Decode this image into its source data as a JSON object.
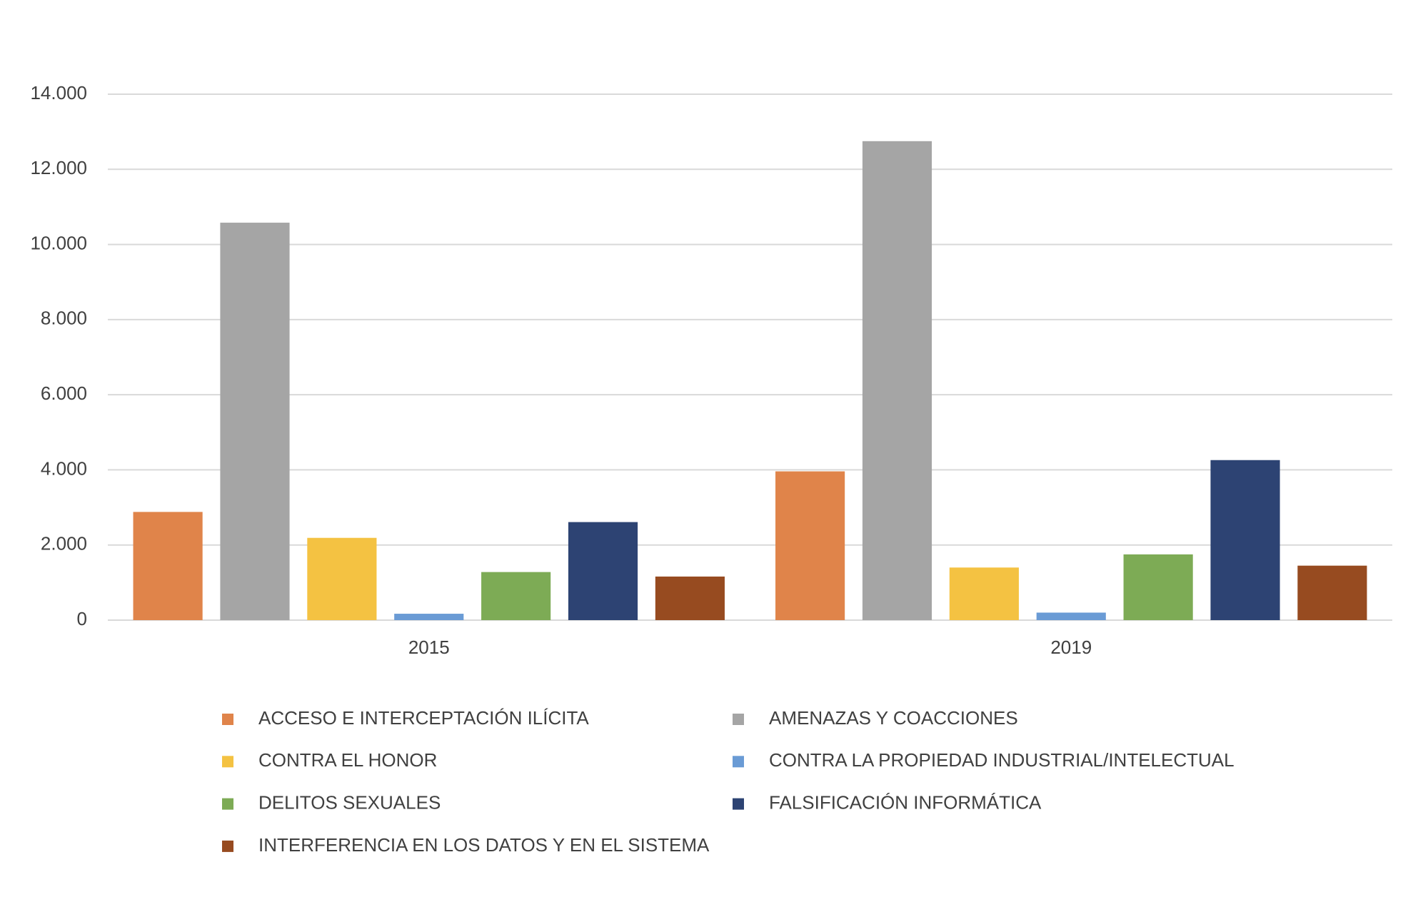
{
  "chart_data": {
    "type": "bar",
    "categories": [
      "2015",
      "2019"
    ],
    "series": [
      {
        "name": "ACCESO  E INTERCEPTACIÓN ILÍCITA",
        "color": "#e0844a",
        "values": [
          2880,
          3960
        ]
      },
      {
        "name": "AMENAZAS Y COACCIONES",
        "color": "#a5a5a5",
        "values": [
          10580,
          12750
        ]
      },
      {
        "name": "CONTRA EL HONOR",
        "color": "#f4c242",
        "values": [
          2190,
          1400
        ]
      },
      {
        "name": "CONTRA LA PROPIEDAD INDUSTRIAL/INTELECTUAL",
        "color": "#6a9bd5",
        "values": [
          170,
          200
        ]
      },
      {
        "name": "DELITOS SEXUALES",
        "color": "#7dab55",
        "values": [
          1280,
          1750
        ]
      },
      {
        "name": "FALSIFICACIÓN INFORMÁTICA",
        "color": "#2d4373",
        "values": [
          2610,
          4260
        ]
      },
      {
        "name": "INTERFERENCIA EN LOS DATOS Y EN EL SISTEMA",
        "color": "#974b20",
        "values": [
          1160,
          1450
        ]
      }
    ],
    "ylim": [
      0,
      14000
    ],
    "yticks": [
      0,
      {
        "value": 2000,
        "label": "2.000"
      },
      {
        "value": 4000,
        "label": "4.000"
      },
      {
        "value": 6000,
        "label": "6.000"
      },
      {
        "value": 8000,
        "label": "8.000"
      },
      {
        "value": 10000,
        "label": "10.000"
      },
      {
        "value": 12000,
        "label": "12.000"
      },
      {
        "value": 14000,
        "label": "14.000"
      }
    ],
    "grid": true,
    "legend": "bottom"
  }
}
